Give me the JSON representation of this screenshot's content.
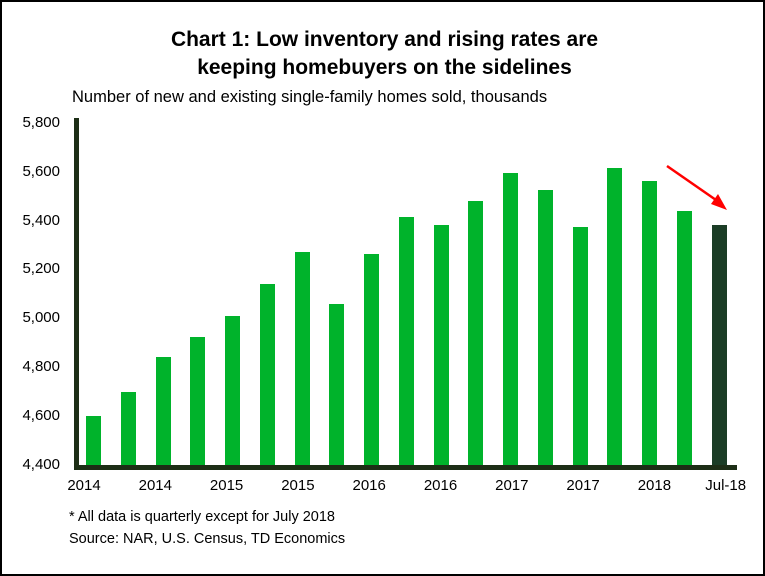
{
  "title": {
    "line1": "Chart 1: Low inventory and rising rates are",
    "line2": "keeping homebuyers on the sidelines"
  },
  "subtitle": "Number of new and existing single-family homes sold, thousands",
  "footnotes": {
    "note": "* All data is quarterly except for July 2018",
    "source": "Source: NAR, U.S. Census, TD Economics"
  },
  "chart_data": {
    "type": "bar",
    "title": "Chart 1: Low inventory and rising rates are keeping homebuyers on the sidelines",
    "ylabel_note": "Number of new and existing single-family homes sold, thousands",
    "ylim": [
      4400,
      5800
    ],
    "y_tick_step": 200,
    "y_tick_labels": [
      "5,800",
      "5,600",
      "5,400",
      "5,200",
      "5,000",
      "4,800",
      "4,600",
      "4,400"
    ],
    "x_tick_labels": [
      "2014",
      "2014",
      "2015",
      "2015",
      "2016",
      "2016",
      "2017",
      "2017",
      "2018",
      "Jul-18"
    ],
    "x_tick_every": 2,
    "values": [
      4600,
      4700,
      4840,
      4925,
      5010,
      5140,
      5270,
      5060,
      5265,
      5415,
      5380,
      5480,
      5595,
      5525,
      5375,
      5615,
      5560,
      5440,
      5380
    ],
    "highlight_index": 18,
    "grid": false,
    "legend": "none",
    "annotation": {
      "shape": "down-right-arrow",
      "color": "#FF0000"
    },
    "colors": {
      "bar": "#00B32B",
      "highlight_bar": "#1B3D26",
      "axis": "#1D2E16",
      "text": "#000000"
    }
  }
}
